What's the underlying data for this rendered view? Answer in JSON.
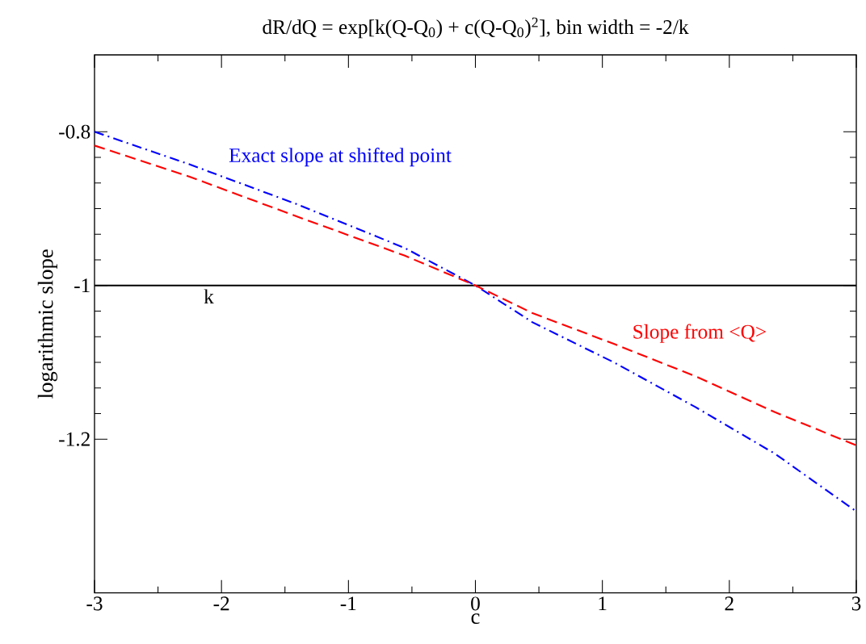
{
  "chart_data": {
    "type": "line",
    "title": "dR/dQ = exp[k(Q-Q$_{0}$) + c(Q-Q$_{0}$)$^{2}$], bin width = -2/k",
    "xlabel": "c",
    "ylabel": "logarithmic slope",
    "x": [
      -3,
      -2.26,
      -1.41,
      -0.56,
      0,
      0.45,
      1.09,
      1.73,
      2.36,
      3
    ],
    "series": [
      {
        "name": "Exact slope at shifted point",
        "color": "#0000ff",
        "line_style": "dashdot",
        "values": [
          -0.8,
          -0.842,
          -0.894,
          -0.951,
          -1.0,
          -1.048,
          -1.1,
          -1.158,
          -1.219,
          -1.294
        ]
      },
      {
        "name": "Slope from <Q>",
        "color": "#ff0000",
        "line_style": "dashed",
        "values": [
          -0.818,
          -0.858,
          -0.91,
          -0.961,
          -1.0,
          -1.036,
          -1.076,
          -1.118,
          -1.165,
          -1.208
        ]
      }
    ],
    "xlim": [
      -3,
      3
    ],
    "ylim": [
      -1.4,
      -0.7
    ],
    "xticks": [
      -3,
      -2,
      -1,
      0,
      1,
      2,
      3
    ],
    "yticks": [
      -0.8,
      -1,
      -1.2
    ],
    "ref_lines": [
      {
        "axis": "y",
        "value": -1,
        "label": "k",
        "color": "#000000"
      }
    ],
    "grid": false,
    "legend": false,
    "marker": "none"
  }
}
